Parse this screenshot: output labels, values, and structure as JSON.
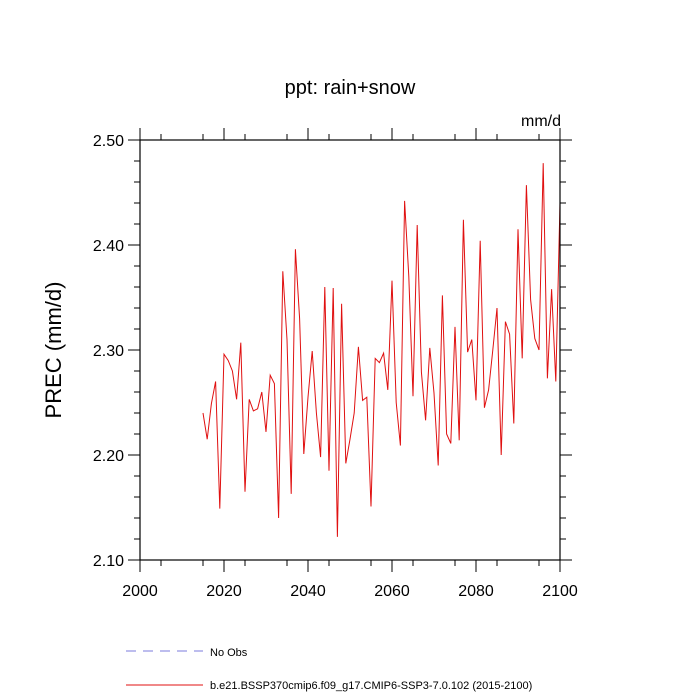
{
  "chart_data": {
    "type": "line",
    "title": "ppt: rain+snow",
    "units": "mm/d",
    "xlabel": "",
    "ylabel": "PREC  (mm/d)",
    "xlim": [
      2000,
      2100
    ],
    "ylim": [
      2.1,
      2.5
    ],
    "xticks": [
      2000,
      2020,
      2040,
      2060,
      2080,
      2100
    ],
    "yticks": [
      2.1,
      2.2,
      2.3,
      2.4,
      2.5
    ],
    "ytick_labels": [
      "2.10",
      "2.20",
      "2.30",
      "2.40",
      "2.50"
    ],
    "series": [
      {
        "name": "b.e21.BSSP370cmip6.f09_g17.CMIP6-SSP3-7.0.102 (2015-2100)",
        "color": "#e01010",
        "style": "solid",
        "x": [
          2015,
          2016,
          2017,
          2018,
          2019,
          2020,
          2021,
          2022,
          2023,
          2024,
          2025,
          2026,
          2027,
          2028,
          2029,
          2030,
          2031,
          2032,
          2033,
          2034,
          2035,
          2036,
          2037,
          2038,
          2039,
          2040,
          2041,
          2042,
          2043,
          2044,
          2045,
          2046,
          2047,
          2048,
          2049,
          2050,
          2051,
          2052,
          2053,
          2054,
          2055,
          2056,
          2057,
          2058,
          2059,
          2060,
          2061,
          2062,
          2063,
          2064,
          2065,
          2066,
          2067,
          2068,
          2069,
          2070,
          2071,
          2072,
          2073,
          2074,
          2075,
          2076,
          2077,
          2078,
          2079,
          2080,
          2081,
          2082,
          2083,
          2084,
          2085,
          2086,
          2087,
          2088,
          2089,
          2090,
          2091,
          2092,
          2093,
          2094,
          2095,
          2096,
          2097,
          2098,
          2099,
          2100
        ],
        "values": [
          2.24,
          2.215,
          2.249,
          2.27,
          2.149,
          2.296,
          2.29,
          2.28,
          2.253,
          2.307,
          2.165,
          2.253,
          2.242,
          2.244,
          2.26,
          2.222,
          2.276,
          2.268,
          2.14,
          2.375,
          2.31,
          2.163,
          2.396,
          2.33,
          2.201,
          2.255,
          2.299,
          2.24,
          2.198,
          2.36,
          2.185,
          2.359,
          2.122,
          2.344,
          2.192,
          2.215,
          2.24,
          2.303,
          2.252,
          2.255,
          2.151,
          2.292,
          2.288,
          2.297,
          2.262,
          2.366,
          2.25,
          2.209,
          2.442,
          2.37,
          2.256,
          2.419,
          2.279,
          2.233,
          2.302,
          2.259,
          2.19,
          2.352,
          2.22,
          2.211,
          2.322,
          2.214,
          2.424,
          2.298,
          2.31,
          2.252,
          2.404,
          2.245,
          2.262,
          2.3,
          2.34,
          2.2,
          2.327,
          2.315,
          2.23,
          2.415,
          2.292,
          2.457,
          2.348,
          2.311,
          2.3,
          2.478,
          2.273,
          2.358,
          2.27,
          2.44
        ]
      },
      {
        "name": "No Obs",
        "color": "#7b7bdc",
        "style": "dashed",
        "x": [],
        "values": []
      }
    ],
    "legend_position": "bottom"
  }
}
